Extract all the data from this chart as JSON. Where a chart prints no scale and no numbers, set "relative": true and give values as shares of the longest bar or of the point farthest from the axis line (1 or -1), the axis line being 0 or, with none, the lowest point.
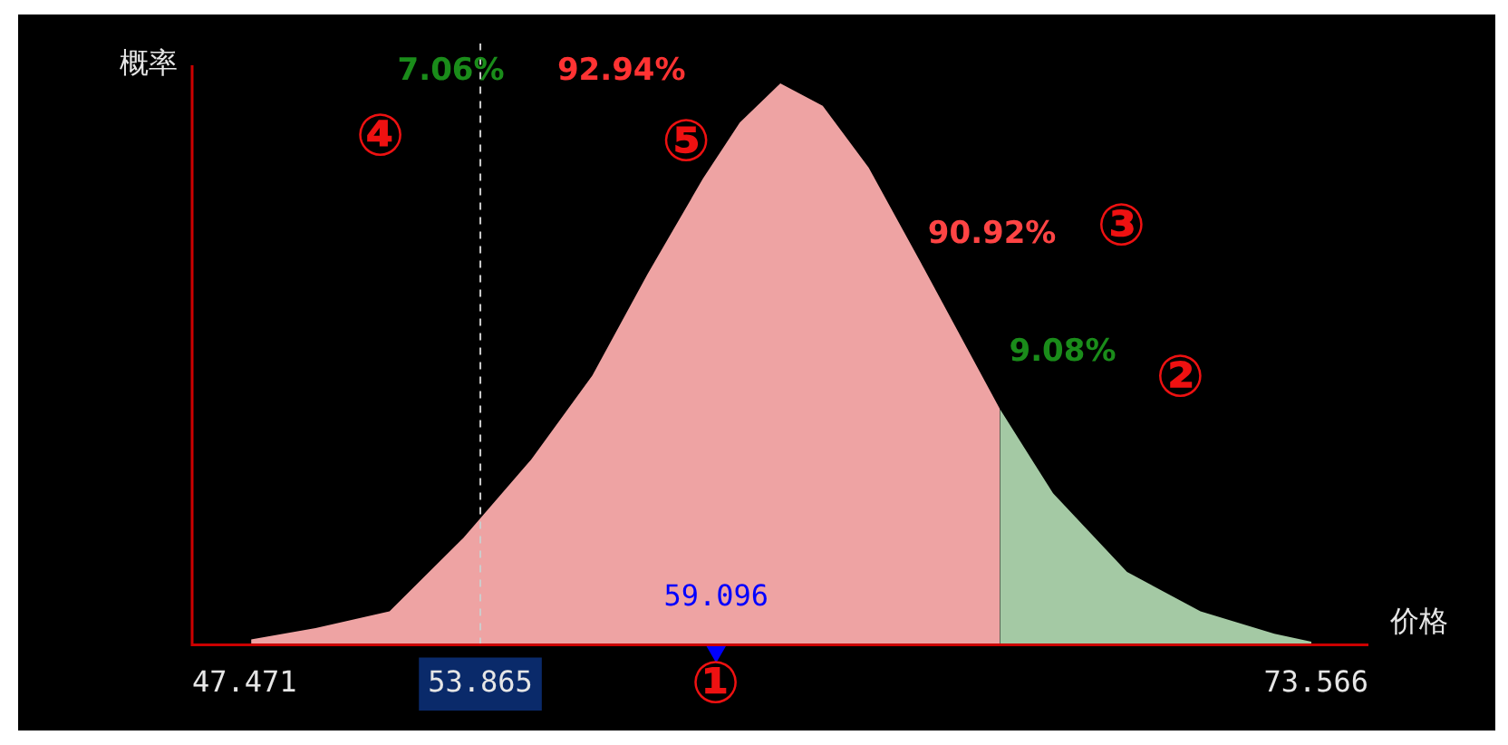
{
  "chart_data": {
    "type": "area",
    "relative": true,
    "ylabel": "概率",
    "xlabel": "价格",
    "xlim": [
      47.471,
      73.566
    ],
    "xticks": [
      47.471,
      53.865,
      73.566
    ],
    "series": [
      {
        "color": "#eea3a3",
        "x": [
          48.78,
          50.21,
          51.85,
          53.48,
          54.99,
          56.35,
          57.57,
          58.8,
          59.62,
          60.52,
          61.46,
          62.48,
          63.71,
          65.39
        ],
        "values": [
          0.01,
          0.03,
          0.06,
          0.19,
          0.33,
          0.48,
          0.66,
          0.83,
          0.93,
          1,
          0.96,
          0.85,
          0.67,
          0.42
        ]
      },
      {
        "color": "#a4c9a4",
        "x": [
          65.39,
          66.57,
          68.21,
          69.84,
          71.48,
          72.3
        ],
        "values": [
          0.42,
          0.27,
          0.13,
          0.06,
          0.02,
          0.006
        ]
      },
      {
        "type": "scatter",
        "marker": "triangle",
        "color": "#0000ff",
        "x": [
          59.096
        ],
        "values": [
          0
        ]
      }
    ],
    "ref_lines": [
      {
        "axis": "x",
        "value": 53.865,
        "color": "#cccccc",
        "line_style": "dashed"
      }
    ],
    "annotations": [
      "7.06%",
      "92.94%",
      "④",
      "⑤",
      "90.92%",
      "③",
      "9.08%",
      "②",
      {
        "text": "59.096",
        "x": 59.096,
        "y": 0
      },
      "①"
    ],
    "grid": false,
    "legend": false
  }
}
